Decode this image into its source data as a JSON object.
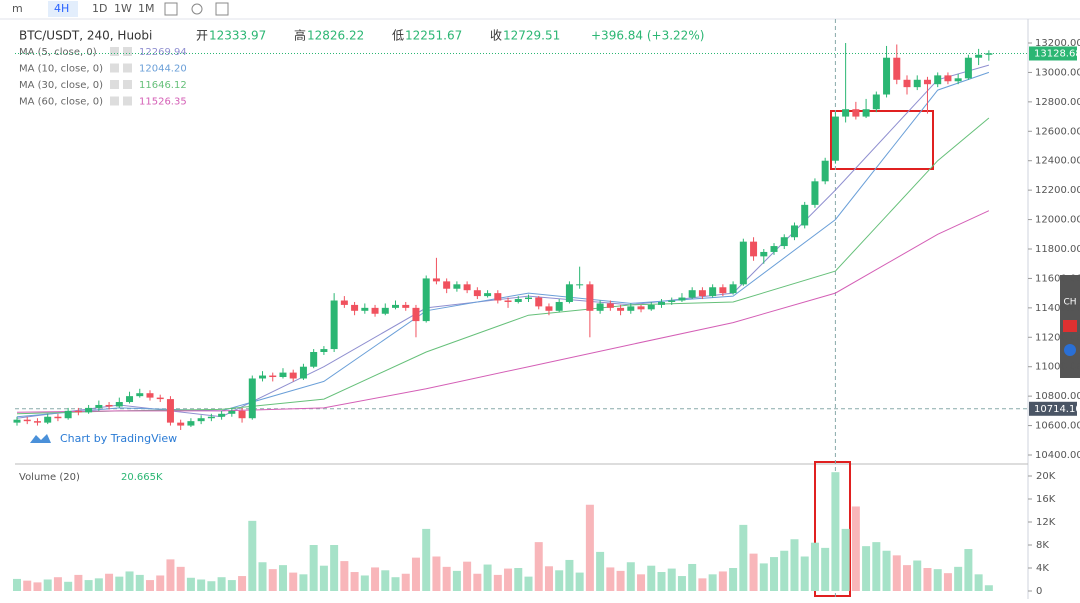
{
  "chart_data": {
    "type": "candlestick",
    "toolbar": [
      "m",
      "4H",
      "1D",
      "1W",
      "1M"
    ],
    "symbol": "BTC/USDT, 240, Huobi",
    "ohlc_header": [
      {
        "label": "开",
        "value": "12333.97"
      },
      {
        "label": "高",
        "value": "12826.22"
      },
      {
        "label": "低",
        "value": "12251.67"
      },
      {
        "label": "收",
        "value": "12729.51"
      }
    ],
    "change": "+396.84 (+3.22%)",
    "watermark": "Chart by TradingView",
    "side_widget": "CH",
    "up_color": "#2bb673",
    "down_color": "#f0515e",
    "vol_up_color": "#a6e2c8",
    "vol_down_color": "#f8b6ba",
    "candles": [
      [
        10620,
        10660,
        10600,
        10640
      ],
      [
        10640,
        10660,
        10610,
        10630
      ],
      [
        10630,
        10650,
        10600,
        10620
      ],
      [
        10620,
        10680,
        10610,
        10660
      ],
      [
        10660,
        10680,
        10630,
        10650
      ],
      [
        10650,
        10720,
        10640,
        10700
      ],
      [
        10700,
        10720,
        10670,
        10690
      ],
      [
        10690,
        10740,
        10680,
        10720
      ],
      [
        10720,
        10770,
        10700,
        10740
      ],
      [
        10740,
        10760,
        10710,
        10730
      ],
      [
        10730,
        10790,
        10720,
        10760
      ],
      [
        10760,
        10830,
        10750,
        10800
      ],
      [
        10800,
        10850,
        10790,
        10820
      ],
      [
        10820,
        10840,
        10770,
        10790
      ],
      [
        10790,
        10810,
        10760,
        10780
      ],
      [
        10780,
        10800,
        10600,
        10620
      ],
      [
        10620,
        10640,
        10570,
        10600
      ],
      [
        10600,
        10650,
        10590,
        10630
      ],
      [
        10630,
        10670,
        10610,
        10650
      ],
      [
        10650,
        10680,
        10630,
        10660
      ],
      [
        10660,
        10700,
        10640,
        10680
      ],
      [
        10680,
        10720,
        10660,
        10700
      ],
      [
        10700,
        10720,
        10620,
        10650
      ],
      [
        10650,
        10940,
        10640,
        10920
      ],
      [
        10920,
        10970,
        10900,
        10940
      ],
      [
        10940,
        10960,
        10900,
        10930
      ],
      [
        10930,
        10990,
        10920,
        10960
      ],
      [
        10960,
        10980,
        10900,
        10920
      ],
      [
        10920,
        11020,
        10910,
        11000
      ],
      [
        11000,
        11120,
        10990,
        11100
      ],
      [
        11100,
        11140,
        11080,
        11120
      ],
      [
        11120,
        11500,
        11100,
        11450
      ],
      [
        11450,
        11480,
        11400,
        11420
      ],
      [
        11420,
        11440,
        11350,
        11380
      ],
      [
        11380,
        11430,
        11360,
        11400
      ],
      [
        11400,
        11420,
        11340,
        11360
      ],
      [
        11360,
        11430,
        11350,
        11400
      ],
      [
        11400,
        11450,
        11390,
        11420
      ],
      [
        11420,
        11440,
        11380,
        11400
      ],
      [
        11400,
        11420,
        11200,
        11310
      ],
      [
        11310,
        11620,
        11300,
        11600
      ],
      [
        11600,
        11740,
        11560,
        11580
      ],
      [
        11580,
        11600,
        11500,
        11530
      ],
      [
        11530,
        11580,
        11510,
        11560
      ],
      [
        11560,
        11580,
        11500,
        11520
      ],
      [
        11520,
        11540,
        11460,
        11480
      ],
      [
        11480,
        11520,
        11470,
        11500
      ],
      [
        11500,
        11520,
        11430,
        11450
      ],
      [
        11450,
        11470,
        11400,
        11440
      ],
      [
        11440,
        11480,
        11430,
        11460
      ],
      [
        11460,
        11490,
        11440,
        11470
      ],
      [
        11470,
        11480,
        11390,
        11410
      ],
      [
        11410,
        11430,
        11350,
        11380
      ],
      [
        11380,
        11460,
        11370,
        11440
      ],
      [
        11440,
        11580,
        11430,
        11560
      ],
      [
        11560,
        11680,
        11530,
        11560
      ],
      [
        11560,
        11580,
        11200,
        11380
      ],
      [
        11380,
        11450,
        11360,
        11430
      ],
      [
        11430,
        11450,
        11380,
        11400
      ],
      [
        11400,
        11420,
        11350,
        11380
      ],
      [
        11380,
        11430,
        11360,
        11410
      ],
      [
        11410,
        11420,
        11370,
        11390
      ],
      [
        11390,
        11440,
        11380,
        11420
      ],
      [
        11420,
        11460,
        11400,
        11440
      ],
      [
        11440,
        11470,
        11420,
        11450
      ],
      [
        11450,
        11500,
        11440,
        11470
      ],
      [
        11470,
        11540,
        11460,
        11520
      ],
      [
        11520,
        11540,
        11460,
        11480
      ],
      [
        11480,
        11560,
        11470,
        11540
      ],
      [
        11540,
        11560,
        11480,
        11500
      ],
      [
        11500,
        11580,
        11490,
        11560
      ],
      [
        11560,
        11870,
        11550,
        11850
      ],
      [
        11850,
        11880,
        11720,
        11750
      ],
      [
        11750,
        11800,
        11700,
        11780
      ],
      [
        11780,
        11840,
        11760,
        11820
      ],
      [
        11820,
        11900,
        11800,
        11880
      ],
      [
        11880,
        11980,
        11860,
        11960
      ],
      [
        11960,
        12120,
        11940,
        12100
      ],
      [
        12100,
        12280,
        12080,
        12260
      ],
      [
        12260,
        12420,
        12240,
        12400
      ],
      [
        12400,
        12730,
        12380,
        12700
      ],
      [
        12700,
        13200,
        12660,
        12750
      ],
      [
        12750,
        12800,
        12680,
        12700
      ],
      [
        12700,
        12820,
        12690,
        12750
      ],
      [
        12750,
        12870,
        12730,
        12850
      ],
      [
        12850,
        13180,
        12830,
        13100
      ],
      [
        13100,
        13190,
        12920,
        12950
      ],
      [
        12950,
        12980,
        12850,
        12900
      ],
      [
        12900,
        12980,
        12880,
        12950
      ],
      [
        12950,
        12970,
        12720,
        12920
      ],
      [
        12920,
        13000,
        12900,
        12980
      ],
      [
        12980,
        13000,
        12920,
        12940
      ],
      [
        12940,
        12990,
        12920,
        12960
      ],
      [
        12960,
        13120,
        12950,
        13100
      ],
      [
        13100,
        13160,
        13050,
        13120
      ],
      [
        13120,
        13150,
        13080,
        13130
      ]
    ],
    "volume": [
      2.1,
      1.8,
      1.5,
      2.0,
      2.4,
      1.6,
      2.8,
      1.9,
      2.2,
      3.0,
      2.5,
      3.4,
      2.8,
      1.9,
      2.7,
      5.5,
      4.2,
      2.3,
      2.0,
      1.7,
      2.4,
      1.9,
      2.6,
      12.2,
      5.0,
      3.8,
      4.5,
      3.2,
      2.9,
      8.0,
      4.4,
      8.0,
      5.2,
      3.3,
      2.7,
      4.1,
      3.6,
      2.4,
      3.0,
      5.8,
      10.8,
      6.0,
      4.2,
      3.5,
      5.1,
      3.0,
      4.6,
      2.8,
      3.9,
      4.0,
      2.5,
      8.5,
      4.3,
      3.6,
      5.4,
      3.2,
      15.0,
      6.8,
      4.1,
      3.5,
      5.0,
      2.9,
      4.4,
      3.3,
      3.9,
      2.6,
      4.7,
      2.2,
      2.9,
      3.4,
      4.0,
      11.5,
      6.5,
      4.8,
      5.9,
      7.0,
      9.0,
      6.0,
      8.4,
      7.5,
      20.665,
      10.8,
      14.7,
      7.8,
      8.5,
      7.0,
      6.2,
      4.5,
      5.3,
      4.0,
      3.8,
      3.1,
      4.2,
      7.3,
      2.9,
      1.0
    ],
    "ma_x": [
      0,
      10,
      20,
      30,
      40,
      50,
      60,
      70,
      80,
      90,
      95
    ],
    "ma": [
      {
        "name": "MA (5, close, 0)",
        "value": "12269.94",
        "color": "#8f8fd0",
        "values": [
          10650,
          10740,
          10660,
          11000,
          11400,
          11480,
          11420,
          11500,
          12200,
          12950,
          13050
        ]
      },
      {
        "name": "MA (10, close, 0)",
        "value": "12044.20",
        "color": "#6a9fd8",
        "values": [
          10660,
          10720,
          10700,
          10900,
          11380,
          11500,
          11430,
          11480,
          12000,
          12880,
          13000
        ]
      },
      {
        "name": "MA (30, close, 0)",
        "value": "11646.12",
        "color": "#66c07a",
        "values": [
          10680,
          10700,
          10710,
          10780,
          11100,
          11350,
          11420,
          11440,
          11650,
          12400,
          12690
        ]
      },
      {
        "name": "MA (60, close, 0)",
        "value": "11526.35",
        "color": "#d45fb6",
        "values": [
          10690,
          10700,
          10700,
          10720,
          10850,
          11000,
          11150,
          11300,
          11500,
          11900,
          12060
        ]
      }
    ],
    "volume_title": "Volume (20)",
    "volume_value": "20.665K",
    "ylim": [
      10400,
      13200
    ],
    "yticks": [
      {
        "value": 10400,
        "label": "10400.00"
      },
      {
        "value": 10600,
        "label": "10600.00"
      },
      {
        "value": 10800,
        "label": "10800.00"
      },
      {
        "value": 11000,
        "label": "11000.00"
      },
      {
        "value": 11200,
        "label": "11200.00"
      },
      {
        "value": 11400,
        "label": "11400.00"
      },
      {
        "value": 11600,
        "label": "11600.00"
      },
      {
        "value": 11800,
        "label": "11800.00"
      },
      {
        "value": 12000,
        "label": "12000.00"
      },
      {
        "value": 12200,
        "label": "12200.00"
      },
      {
        "value": 12400,
        "label": "12400.00"
      },
      {
        "value": 12600,
        "label": "12600.00"
      },
      {
        "value": 12800,
        "label": "12800.00"
      },
      {
        "value": 13000,
        "label": "13000.00"
      },
      {
        "value": 13200,
        "label": "13200.00"
      }
    ],
    "last_price": {
      "value": 13128.68,
      "label": "13128.68"
    },
    "crosshair_price": {
      "value": 10714.1,
      "label": "10714.10"
    },
    "crosshair_index": 80,
    "vlim": [
      0,
      20
    ],
    "vticks": [
      0,
      {
        "value": 4,
        "label": "4K"
      },
      {
        "value": 8,
        "label": "8K"
      },
      {
        "value": 12,
        "label": "12K"
      },
      {
        "value": 16,
        "label": "16K"
      },
      {
        "value": 20,
        "label": "20K"
      }
    ]
  }
}
